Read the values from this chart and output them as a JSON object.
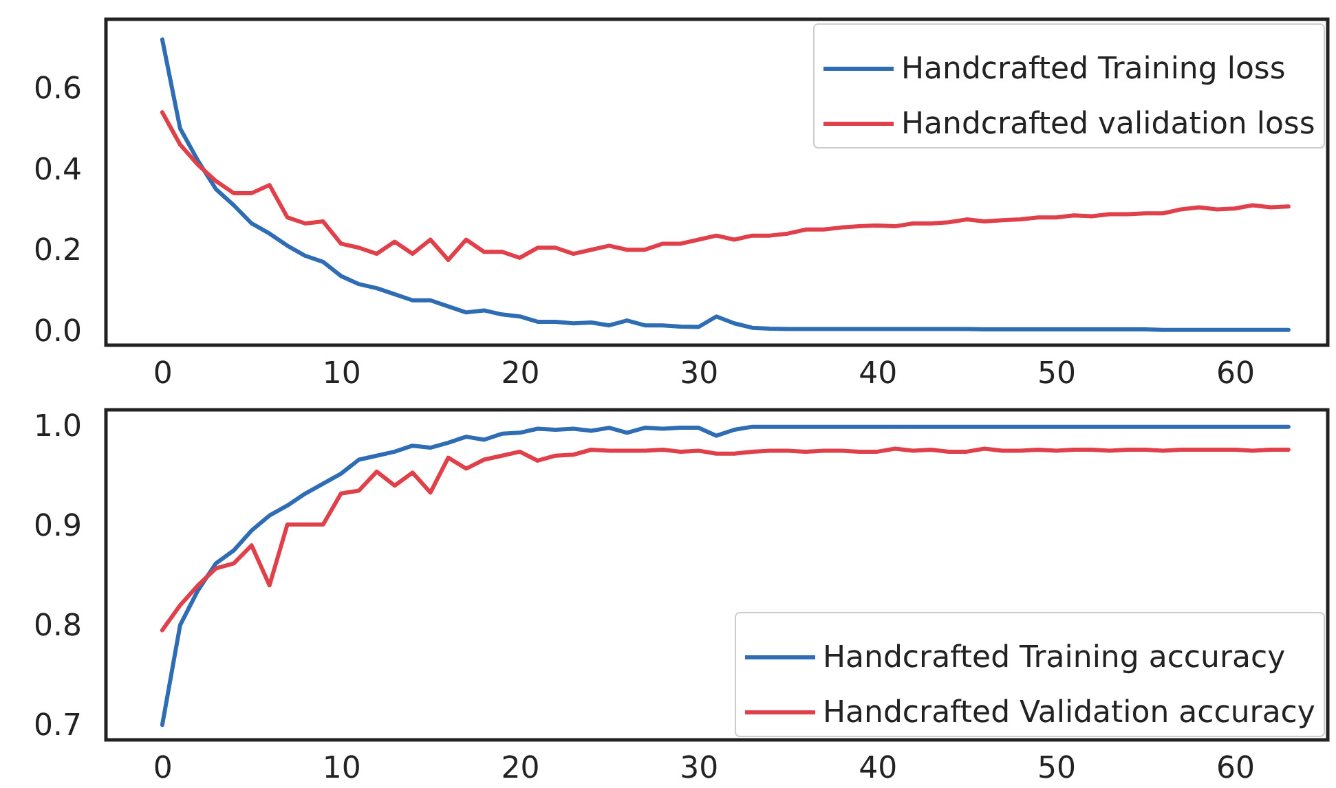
{
  "chart_data": [
    {
      "type": "line",
      "x": [
        0,
        1,
        2,
        3,
        4,
        5,
        6,
        7,
        8,
        9,
        10,
        11,
        12,
        13,
        14,
        15,
        16,
        17,
        18,
        19,
        20,
        21,
        22,
        23,
        24,
        25,
        26,
        27,
        28,
        29,
        30,
        31,
        32,
        33,
        34,
        35,
        36,
        37,
        38,
        39,
        40,
        41,
        42,
        43,
        44,
        45,
        46,
        47,
        48,
        49,
        50,
        51,
        52,
        53,
        54,
        55,
        56,
        57,
        58,
        59,
        60,
        61,
        62,
        63
      ],
      "series": [
        {
          "name": "Handcrafted Training loss",
          "color": "#2e6db4",
          "values": [
            0.72,
            0.5,
            0.42,
            0.35,
            0.31,
            0.265,
            0.24,
            0.21,
            0.185,
            0.17,
            0.135,
            0.115,
            0.105,
            0.09,
            0.075,
            0.075,
            0.06,
            0.045,
            0.05,
            0.04,
            0.035,
            0.022,
            0.022,
            0.018,
            0.02,
            0.013,
            0.025,
            0.013,
            0.013,
            0.01,
            0.009,
            0.035,
            0.018,
            0.007,
            0.005,
            0.004,
            0.004,
            0.004,
            0.004,
            0.004,
            0.004,
            0.004,
            0.004,
            0.004,
            0.004,
            0.004,
            0.003,
            0.003,
            0.003,
            0.003,
            0.003,
            0.003,
            0.003,
            0.003,
            0.003,
            0.003,
            0.002,
            0.002,
            0.002,
            0.002,
            0.002,
            0.002,
            0.002,
            0.002
          ]
        },
        {
          "name": "Handcrafted validation loss",
          "color": "#e0404a",
          "values": [
            0.54,
            0.46,
            0.41,
            0.37,
            0.34,
            0.34,
            0.36,
            0.28,
            0.265,
            0.27,
            0.215,
            0.205,
            0.19,
            0.22,
            0.19,
            0.225,
            0.175,
            0.225,
            0.195,
            0.195,
            0.18,
            0.205,
            0.205,
            0.19,
            0.2,
            0.21,
            0.2,
            0.2,
            0.215,
            0.215,
            0.225,
            0.235,
            0.225,
            0.235,
            0.235,
            0.24,
            0.25,
            0.25,
            0.255,
            0.258,
            0.26,
            0.258,
            0.265,
            0.265,
            0.268,
            0.275,
            0.27,
            0.273,
            0.275,
            0.28,
            0.28,
            0.285,
            0.283,
            0.288,
            0.288,
            0.29,
            0.29,
            0.3,
            0.305,
            0.3,
            0.302,
            0.31,
            0.305,
            0.307
          ]
        }
      ],
      "xlim": [
        -3.15,
        65.2
      ],
      "xticks": [
        0,
        10,
        20,
        30,
        40,
        50,
        60
      ],
      "ylim": [
        -0.036,
        0.77
      ],
      "yticks": [
        {
          "value": 0,
          "label": "0.0"
        },
        0.2,
        0.4,
        0.6
      ],
      "legend": "top right",
      "marker": "none",
      "line_style": "solid"
    },
    {
      "type": "line",
      "x": [
        0,
        1,
        2,
        3,
        4,
        5,
        6,
        7,
        8,
        9,
        10,
        11,
        12,
        13,
        14,
        15,
        16,
        17,
        18,
        19,
        20,
        21,
        22,
        23,
        24,
        25,
        26,
        27,
        28,
        29,
        30,
        31,
        32,
        33,
        34,
        35,
        36,
        37,
        38,
        39,
        40,
        41,
        42,
        43,
        44,
        45,
        46,
        47,
        48,
        49,
        50,
        51,
        52,
        53,
        54,
        55,
        56,
        57,
        58,
        59,
        60,
        61,
        62,
        63
      ],
      "series": [
        {
          "name": "Handcrafted Training accuracy",
          "color": "#2e6db4",
          "values": [
            0.7,
            0.8,
            0.835,
            0.862,
            0.875,
            0.895,
            0.91,
            0.92,
            0.932,
            0.942,
            0.952,
            0.966,
            0.97,
            0.974,
            0.98,
            0.978,
            0.983,
            0.989,
            0.986,
            0.992,
            0.993,
            0.997,
            0.996,
            0.997,
            0.995,
            0.998,
            0.993,
            0.998,
            0.997,
            0.998,
            0.998,
            0.99,
            0.996,
            0.999,
            0.999,
            0.999,
            0.999,
            0.999,
            0.999,
            0.999,
            0.999,
            0.999,
            0.999,
            0.999,
            0.999,
            0.999,
            0.999,
            0.999,
            0.999,
            0.999,
            0.999,
            0.999,
            0.999,
            0.999,
            0.999,
            0.999,
            0.999,
            0.999,
            0.999,
            0.999,
            0.999,
            0.999,
            0.999,
            0.999
          ]
        },
        {
          "name": "Handcrafted Validation accuracy",
          "color": "#e0404a",
          "values": [
            0.795,
            0.82,
            0.84,
            0.857,
            0.862,
            0.88,
            0.84,
            0.901,
            0.901,
            0.901,
            0.932,
            0.935,
            0.954,
            0.94,
            0.953,
            0.933,
            0.968,
            0.957,
            0.966,
            0.97,
            0.974,
            0.965,
            0.97,
            0.971,
            0.976,
            0.975,
            0.975,
            0.975,
            0.976,
            0.974,
            0.975,
            0.972,
            0.972,
            0.974,
            0.975,
            0.975,
            0.974,
            0.975,
            0.975,
            0.974,
            0.974,
            0.977,
            0.975,
            0.976,
            0.974,
            0.974,
            0.977,
            0.975,
            0.975,
            0.976,
            0.975,
            0.976,
            0.976,
            0.975,
            0.976,
            0.976,
            0.975,
            0.976,
            0.976,
            0.976,
            0.976,
            0.975,
            0.976,
            0.976
          ]
        }
      ],
      "xlim": [
        -3.15,
        65.2
      ],
      "xticks": [
        0,
        10,
        20,
        30,
        40,
        50,
        60
      ],
      "ylim": [
        0.685,
        1.016
      ],
      "yticks": [
        0.7,
        0.8,
        0.9,
        {
          "value": 1,
          "label": "1.0"
        }
      ],
      "legend": "bottom right",
      "marker": "none",
      "line_style": "solid"
    }
  ]
}
